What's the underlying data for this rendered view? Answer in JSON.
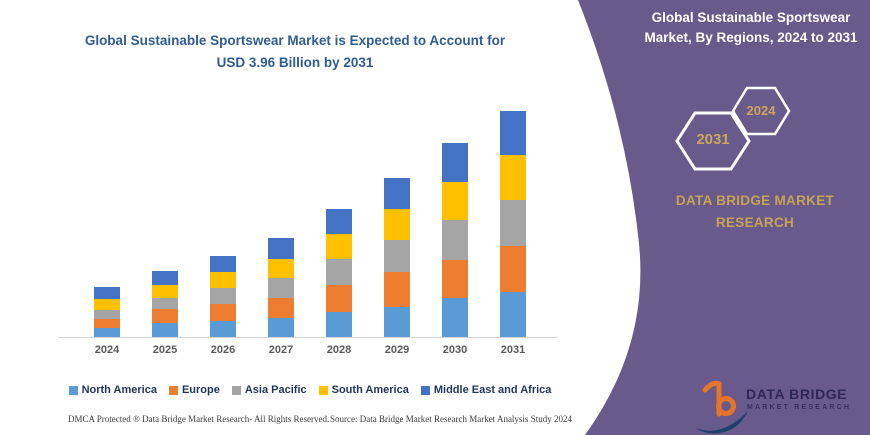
{
  "main": {
    "title": "Global Sustainable Sportswear Market is Expected to Account for USD 3.96 Billion by 2031"
  },
  "chart_data": {
    "type": "bar",
    "stacked": true,
    "title": "Global Sustainable Sportswear Market is Expected to Account for USD 3.96 Billion by 2031",
    "unit": "USD Billion",
    "categories": [
      "2024",
      "2025",
      "2026",
      "2027",
      "2028",
      "2029",
      "2030",
      "2031"
    ],
    "series": [
      {
        "name": "North America",
        "color": "#5B9BD5",
        "values": [
          0.16,
          0.25,
          0.28,
          0.34,
          0.44,
          0.53,
          0.68,
          0.78
        ]
      },
      {
        "name": "Europe",
        "color": "#ED7D31",
        "values": [
          0.16,
          0.24,
          0.29,
          0.35,
          0.47,
          0.6,
          0.67,
          0.81
        ]
      },
      {
        "name": "Asia Pacific",
        "color": "#A5A5A5",
        "values": [
          0.16,
          0.2,
          0.29,
          0.34,
          0.46,
          0.56,
          0.7,
          0.81
        ]
      },
      {
        "name": "South America",
        "color": "#FFC000",
        "values": [
          0.18,
          0.23,
          0.27,
          0.34,
          0.44,
          0.55,
          0.66,
          0.79
        ]
      },
      {
        "name": "Middle East and Africa",
        "color": "#4472C4",
        "values": [
          0.22,
          0.23,
          0.28,
          0.36,
          0.44,
          0.55,
          0.69,
          0.77
        ]
      }
    ],
    "totals": [
      0.88,
      1.15,
      1.41,
      1.73,
      2.25,
      2.79,
      3.4,
      3.96
    ],
    "ylim": [
      0,
      4.2
    ],
    "gridlines": false,
    "y_axis_visible": false,
    "legend_position": "bottom"
  },
  "panel": {
    "title": "Global Sustainable Sportswear Market, By Regions, 2024 to 2031",
    "hexagon_start": "2031",
    "hexagon_end": "2024",
    "brand": "DATA BRIDGE MARKET RESEARCH",
    "background_color": "#695a8c",
    "accent_gold": "#c9a258"
  },
  "logo": {
    "name": "DATA BRIDGE",
    "subname": "MARKET RESEARCH"
  },
  "footer": {
    "left": "DMCA Protected ® Data Bridge Market Research- All Rights Reserved.",
    "source": "Source: Data Bridge Market Research Market Analysis Study 2024"
  }
}
